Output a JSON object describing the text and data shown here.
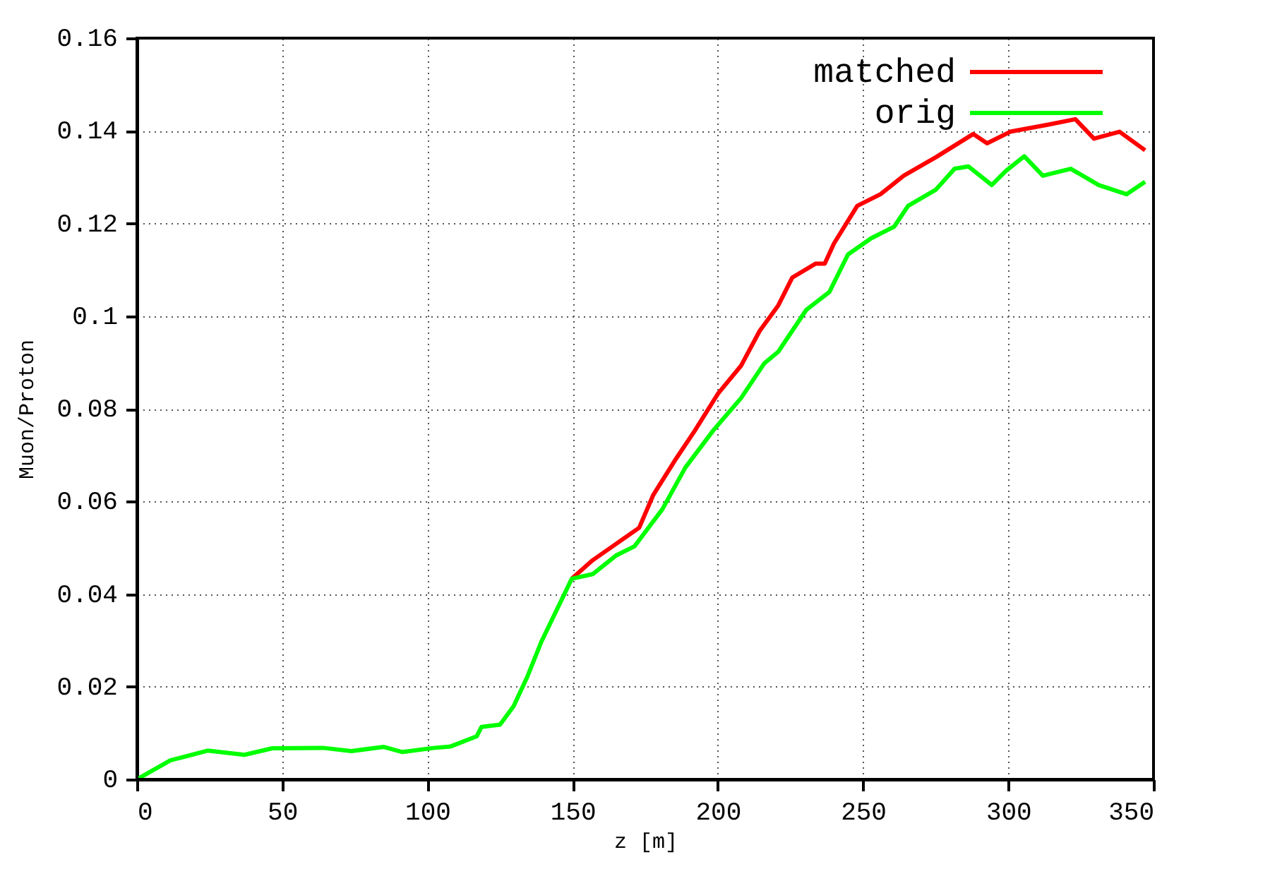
{
  "chart_data": {
    "type": "line",
    "xlabel": "z [m]",
    "ylabel": "Muon/Proton",
    "xlim": [
      0,
      350
    ],
    "xticks": [
      0,
      50,
      100,
      150,
      200,
      250,
      300,
      350
    ],
    "ylim": [
      0,
      0.16
    ],
    "yticks": [
      0,
      0.02,
      0.04,
      0.06,
      0.08,
      0.1,
      0.12,
      0.14,
      0.16
    ],
    "grid": true,
    "legend": "top right",
    "line_style": "solid",
    "marker": "none",
    "series": [
      {
        "name": "matched",
        "color": "#ff0000",
        "x": [
          149.7,
          156.9,
          164.9,
          172.9,
          177.7,
          185.7,
          192.1,
          200.1,
          208,
          214.4,
          220.8,
          225.6,
          233.6,
          236.8,
          240,
          248,
          256,
          264,
          275.1,
          287.9,
          292.7,
          300.7,
          313.5,
          323.1,
          329.5,
          338.3,
          347.1
        ],
        "values": [
          0.0433,
          0.0473,
          0.0508,
          0.0543,
          0.0613,
          0.0693,
          0.0753,
          0.0833,
          0.0893,
          0.0968,
          0.1023,
          0.1083,
          0.1113,
          0.1113,
          0.1157,
          0.1238,
          0.1263,
          0.1303,
          0.1343,
          0.1393,
          0.1373,
          0.1398,
          0.1413,
          0.1425,
          0.1383,
          0.1398,
          0.1358
        ]
      },
      {
        "name": "orig",
        "color": "#00ff00",
        "x": [
          0,
          11.5,
          24.3,
          37,
          46.6,
          64,
          73.8,
          85,
          91.4,
          102.5,
          108,
          117,
          118.6,
          125,
          129.7,
          134.5,
          139.3,
          149.7,
          156.9,
          164.9,
          171.3,
          180.9,
          188.8,
          198.4,
          208,
          216,
          220.8,
          230.4,
          238.4,
          244.8,
          252.8,
          260.7,
          265.5,
          275.1,
          281.5,
          286.3,
          294.3,
          299.1,
          305.5,
          311.9,
          321.5,
          331.1,
          340.7,
          347.1
        ],
        "values": [
          0,
          0.0041,
          0.0062,
          0.0053,
          0.0067,
          0.0068,
          0.0061,
          0.007,
          0.0059,
          0.0068,
          0.0071,
          0.0093,
          0.0113,
          0.0118,
          0.0158,
          0.0223,
          0.0298,
          0.0433,
          0.0443,
          0.0483,
          0.0503,
          0.0583,
          0.0673,
          0.0753,
          0.0823,
          0.0898,
          0.0923,
          0.1013,
          0.1052,
          0.1133,
          0.1168,
          0.1193,
          0.1238,
          0.1273,
          0.1318,
          0.1323,
          0.1283,
          0.1313,
          0.1345,
          0.1303,
          0.1318,
          0.1283,
          0.1263,
          0.129
        ]
      }
    ]
  }
}
